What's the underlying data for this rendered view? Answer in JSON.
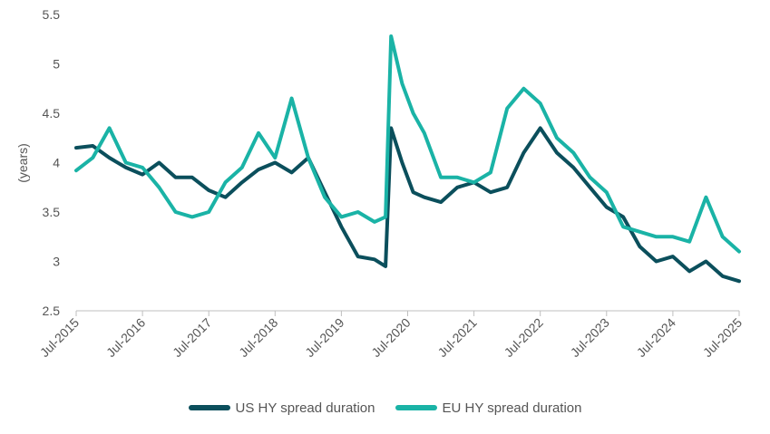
{
  "chart_data": {
    "type": "line",
    "title": "",
    "xlabel": "",
    "ylabel": "(years)",
    "ylim": [
      2.5,
      5.5
    ],
    "yticks": [
      "2.5",
      "3",
      "3.5",
      "4",
      "4.5",
      "5",
      "5.5"
    ],
    "xlim": [
      "2015-07",
      "2025-07"
    ],
    "xticks": [
      "Jul-2015",
      "Jul-2016",
      "Jul-2017",
      "Jul-2018",
      "Jul-2019",
      "Jul-2020",
      "Jul-2021",
      "Jul-2022",
      "Jul-2023",
      "Jul-2024",
      "Jul-2025"
    ],
    "grid": false,
    "legend": "bottom",
    "series": [
      {
        "name": "US HY spread duration",
        "color": "#0b4f5c",
        "x": [
          "2015-07",
          "2015-10",
          "2016-01",
          "2016-04",
          "2016-07",
          "2016-10",
          "2017-01",
          "2017-04",
          "2017-07",
          "2017-10",
          "2018-01",
          "2018-04",
          "2018-07",
          "2018-10",
          "2019-01",
          "2019-04",
          "2019-07",
          "2019-10",
          "2020-01",
          "2020-03",
          "2020-04",
          "2020-06",
          "2020-08",
          "2020-10",
          "2021-01",
          "2021-04",
          "2021-07",
          "2021-10",
          "2022-01",
          "2022-04",
          "2022-07",
          "2022-10",
          "2023-01",
          "2023-04",
          "2023-07",
          "2023-10",
          "2024-01",
          "2024-04",
          "2024-07",
          "2024-10",
          "2025-01",
          "2025-04",
          "2025-07"
        ],
        "values": [
          4.15,
          4.17,
          4.05,
          3.95,
          3.88,
          4.0,
          3.85,
          3.85,
          3.72,
          3.65,
          3.8,
          3.93,
          4.0,
          3.9,
          4.05,
          3.7,
          3.35,
          3.05,
          3.02,
          2.95,
          4.35,
          4.0,
          3.7,
          3.65,
          3.6,
          3.75,
          3.8,
          3.7,
          3.75,
          4.1,
          4.35,
          4.1,
          3.95,
          3.75,
          3.55,
          3.45,
          3.15,
          3.0,
          3.05,
          2.9,
          3.0,
          2.85,
          2.8
        ]
      },
      {
        "name": "EU HY spread duration",
        "color": "#1ab3a6",
        "x": [
          "2015-07",
          "2015-10",
          "2016-01",
          "2016-04",
          "2016-07",
          "2016-10",
          "2017-01",
          "2017-04",
          "2017-07",
          "2017-10",
          "2018-01",
          "2018-04",
          "2018-07",
          "2018-10",
          "2019-01",
          "2019-04",
          "2019-07",
          "2019-10",
          "2020-01",
          "2020-03",
          "2020-04",
          "2020-06",
          "2020-08",
          "2020-10",
          "2021-01",
          "2021-04",
          "2021-07",
          "2021-10",
          "2022-01",
          "2022-04",
          "2022-07",
          "2022-10",
          "2023-01",
          "2023-04",
          "2023-07",
          "2023-10",
          "2024-01",
          "2024-04",
          "2024-07",
          "2024-10",
          "2025-01",
          "2025-04",
          "2025-07"
        ],
        "values": [
          3.92,
          4.05,
          4.35,
          4.0,
          3.95,
          3.75,
          3.5,
          3.45,
          3.5,
          3.8,
          3.95,
          4.3,
          4.05,
          4.65,
          4.05,
          3.65,
          3.45,
          3.5,
          3.4,
          3.45,
          5.28,
          4.8,
          4.5,
          4.3,
          3.85,
          3.85,
          3.8,
          3.9,
          4.55,
          4.75,
          4.6,
          4.25,
          4.1,
          3.85,
          3.7,
          3.35,
          3.3,
          3.25,
          3.25,
          3.2,
          3.65,
          3.25,
          3.1
        ]
      }
    ]
  }
}
